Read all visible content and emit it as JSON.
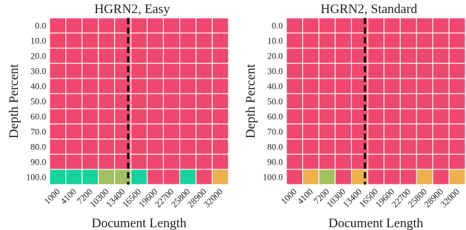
{
  "chart_data": [
    {
      "type": "heatmap",
      "title": "HGRN2, Easy",
      "xlabel": "Document Length",
      "ylabel": "Depth Percent",
      "x_categories": [
        "1000",
        "4100",
        "7200",
        "10300",
        "13400",
        "16500",
        "19600",
        "22700",
        "25800",
        "28900",
        "32000"
      ],
      "y_categories": [
        "0.0",
        "10.0",
        "20.0",
        "30.0",
        "40.0",
        "50.0",
        "60.0",
        "70.0",
        "80.0",
        "90.0",
        "100.0"
      ],
      "values": [
        [
          0,
          0,
          0,
          0,
          0,
          0,
          0,
          0,
          0,
          0,
          0
        ],
        [
          0,
          0,
          0,
          0,
          0,
          0,
          0,
          0,
          0,
          0,
          0
        ],
        [
          0,
          0,
          0,
          0,
          0,
          0,
          0,
          0,
          0,
          0,
          0
        ],
        [
          0,
          0,
          0,
          0,
          0,
          0,
          0,
          0,
          0,
          0,
          0
        ],
        [
          0,
          0,
          0,
          0,
          0,
          0,
          0,
          0,
          0,
          0,
          0
        ],
        [
          0,
          0,
          0,
          0,
          0,
          0,
          0,
          0,
          0,
          0,
          0
        ],
        [
          0,
          0,
          0,
          0,
          0,
          0,
          0,
          0,
          0,
          0,
          0
        ],
        [
          0,
          0,
          0,
          0,
          0,
          0,
          0,
          0,
          0,
          0,
          0
        ],
        [
          0,
          0,
          0,
          0,
          0,
          0,
          0,
          0,
          0,
          0,
          0
        ],
        [
          0,
          0,
          0,
          0,
          0,
          0,
          0,
          0,
          0,
          0,
          0
        ],
        [
          1,
          1,
          1,
          0.7,
          0.7,
          1,
          0,
          0,
          1,
          0,
          0.4
        ]
      ],
      "reference_line_x": "16500",
      "grid": true
    },
    {
      "type": "heatmap",
      "title": "HGRN2, Standard",
      "xlabel": "Document Length",
      "ylabel": "Depth Percent",
      "x_categories": [
        "1000",
        "4100",
        "7200",
        "10300",
        "13400",
        "16500",
        "19600",
        "22700",
        "25800",
        "28900",
        "32000"
      ],
      "y_categories": [
        "0.0",
        "10.0",
        "20.0",
        "30.0",
        "40.0",
        "50.0",
        "60.0",
        "70.0",
        "80.0",
        "90.0",
        "100.0"
      ],
      "values": [
        [
          0,
          0,
          0,
          0,
          0,
          0,
          0,
          0,
          0,
          0,
          0
        ],
        [
          0,
          0,
          0,
          0,
          0,
          0,
          0,
          0,
          0,
          0,
          0
        ],
        [
          0,
          0,
          0,
          0,
          0,
          0,
          0,
          0,
          0,
          0,
          0
        ],
        [
          0,
          0,
          0,
          0,
          0,
          0,
          0,
          0,
          0,
          0,
          0
        ],
        [
          0,
          0,
          0,
          0,
          0,
          0,
          0,
          0,
          0,
          0,
          0
        ],
        [
          0,
          0,
          0,
          0,
          0,
          0,
          0,
          0,
          0,
          0,
          0
        ],
        [
          0,
          0,
          0,
          0,
          0,
          0,
          0,
          0,
          0,
          0,
          0
        ],
        [
          0,
          0,
          0,
          0,
          0,
          0,
          0,
          0,
          0,
          0,
          0
        ],
        [
          0,
          0,
          0,
          0,
          0,
          0,
          0,
          0,
          0,
          0,
          0
        ],
        [
          0,
          0,
          0,
          0,
          0,
          0,
          0,
          0,
          0,
          0,
          0
        ],
        [
          0,
          0.4,
          0.7,
          0,
          0.4,
          0,
          0,
          0,
          0.4,
          0,
          0.4
        ]
      ],
      "reference_line_x": "16500",
      "grid": true
    }
  ],
  "colors": {
    "score_0": "#F0476E",
    "score_0_4": "#EDB04A",
    "score_0_7": "#A2C05E",
    "score_1": "#16D29E",
    "gridline": "#ffffff",
    "reference_line": "#000000"
  }
}
